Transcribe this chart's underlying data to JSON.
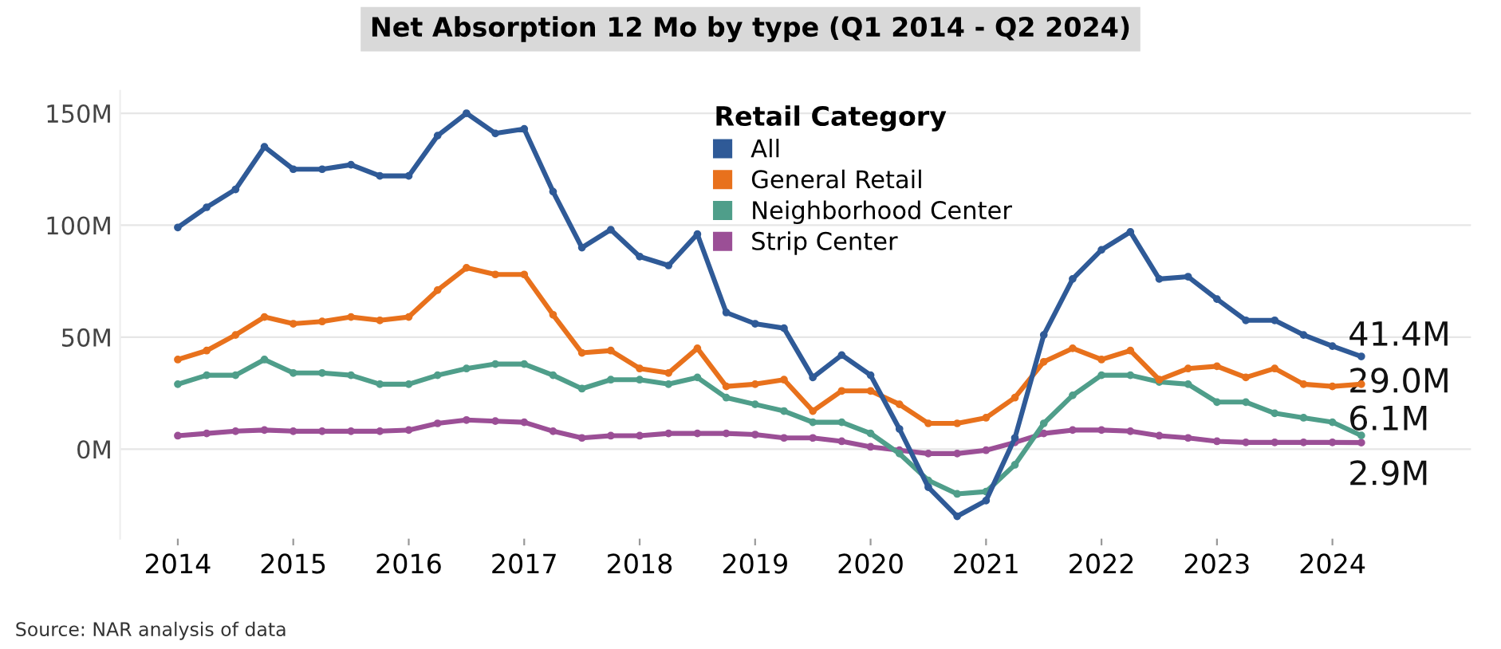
{
  "chart_data": {
    "type": "line",
    "title": "Net Absorption 12 Mo by type (Q1 2014 - Q2 2024)",
    "legend_title": "Retail Category",
    "legend": "top",
    "grid": "y",
    "marker": "circle",
    "line_style": "solid",
    "x": [
      2014,
      2014.25,
      2014.5,
      2014.75,
      2015,
      2015.25,
      2015.5,
      2015.75,
      2016,
      2016.25,
      2016.5,
      2016.75,
      2017,
      2017.25,
      2017.5,
      2017.75,
      2018,
      2018.25,
      2018.5,
      2018.75,
      2019,
      2019.25,
      2019.5,
      2019.75,
      2020,
      2020.25,
      2020.5,
      2020.75,
      2021,
      2021.25,
      2021.5,
      2021.75,
      2022,
      2022.25,
      2022.5,
      2022.75,
      2023,
      2023.25,
      2023.5,
      2023.75,
      2024,
      2024.25
    ],
    "series": [
      {
        "name": "All",
        "color": "#2f5a97",
        "values": [
          99,
          108,
          116,
          135,
          125,
          125,
          127,
          122,
          122,
          140,
          150,
          141,
          143,
          115,
          90,
          98,
          86,
          82,
          96,
          61,
          56,
          54,
          32,
          42,
          33,
          9,
          -17,
          -30,
          -23,
          5,
          51,
          76,
          89,
          97,
          76,
          77,
          67,
          57.5,
          57.5,
          51,
          46,
          41.4
        ],
        "value_labels": [
          null,
          null,
          null,
          null,
          null,
          null,
          null,
          null,
          null,
          null,
          null,
          null,
          null,
          null,
          null,
          null,
          null,
          null,
          null,
          null,
          null,
          null,
          null,
          null,
          null,
          null,
          null,
          null,
          null,
          null,
          null,
          null,
          null,
          null,
          null,
          null,
          null,
          null,
          null,
          null,
          null,
          "41.4M"
        ]
      },
      {
        "name": "General Retail",
        "color": "#e8711c",
        "values": [
          40,
          44,
          51,
          59,
          56,
          57,
          59,
          57.5,
          59,
          71,
          81,
          78,
          78,
          60,
          43,
          44,
          36,
          34,
          45,
          28,
          29,
          31,
          17,
          26,
          26,
          20,
          11.5,
          11.5,
          14,
          23,
          39,
          45,
          40,
          44,
          31,
          36,
          37,
          32,
          36,
          29,
          28,
          29.0
        ],
        "value_labels": [
          null,
          null,
          null,
          null,
          null,
          null,
          null,
          null,
          null,
          null,
          null,
          null,
          null,
          null,
          null,
          null,
          null,
          null,
          null,
          null,
          null,
          null,
          null,
          null,
          null,
          null,
          null,
          null,
          null,
          null,
          null,
          null,
          null,
          null,
          null,
          null,
          null,
          null,
          null,
          null,
          null,
          "29.0M"
        ]
      },
      {
        "name": "Neighborhood Center",
        "color": "#4f9e8a",
        "values": [
          29,
          33,
          33,
          40,
          34,
          34,
          33,
          29,
          29,
          33,
          36,
          38,
          38,
          33,
          27,
          31,
          31,
          29,
          32,
          23,
          20,
          17,
          12,
          12,
          7,
          -2,
          -14,
          -20,
          -19,
          -7,
          11.5,
          24,
          33,
          33,
          30,
          29,
          21,
          21,
          16,
          14,
          12,
          6.1
        ],
        "value_labels": [
          null,
          null,
          null,
          null,
          null,
          null,
          null,
          null,
          null,
          null,
          null,
          null,
          null,
          null,
          null,
          null,
          null,
          null,
          null,
          null,
          null,
          null,
          null,
          null,
          null,
          null,
          null,
          null,
          null,
          null,
          null,
          null,
          null,
          null,
          null,
          null,
          null,
          null,
          null,
          null,
          null,
          "6.1M"
        ]
      },
      {
        "name": "Strip Center",
        "color": "#9b4f96",
        "values": [
          6,
          7,
          8,
          8.5,
          8,
          8,
          8,
          8,
          8.5,
          11.5,
          13,
          12.5,
          12,
          8,
          5,
          6,
          6,
          7,
          7,
          7,
          6.5,
          5,
          5,
          3.5,
          1,
          -0.5,
          -2,
          -2,
          -0.5,
          3,
          7,
          8.5,
          8.5,
          8,
          6,
          5,
          3.5,
          3,
          3,
          3,
          3,
          2.9
        ],
        "value_labels": [
          null,
          null,
          null,
          null,
          null,
          null,
          null,
          null,
          null,
          null,
          null,
          null,
          null,
          null,
          null,
          null,
          null,
          null,
          null,
          null,
          null,
          null,
          null,
          null,
          null,
          null,
          null,
          null,
          null,
          null,
          null,
          null,
          null,
          null,
          null,
          null,
          null,
          null,
          null,
          null,
          null,
          "2.9M"
        ]
      }
    ],
    "xlim": [
      2013.5,
      2025.2
    ],
    "xticks": [
      2014,
      2015,
      2016,
      2017,
      2018,
      2019,
      2020,
      2021,
      2022,
      2023,
      2024
    ],
    "ylim": [
      -40,
      160
    ],
    "yticks": [
      {
        "value": 0,
        "label": "0M"
      },
      {
        "value": 50,
        "label": "50M"
      },
      {
        "value": 100,
        "label": "100M"
      },
      {
        "value": 150,
        "label": "150M"
      }
    ],
    "annotations": [
      "Source: NAR analysis of data"
    ]
  }
}
